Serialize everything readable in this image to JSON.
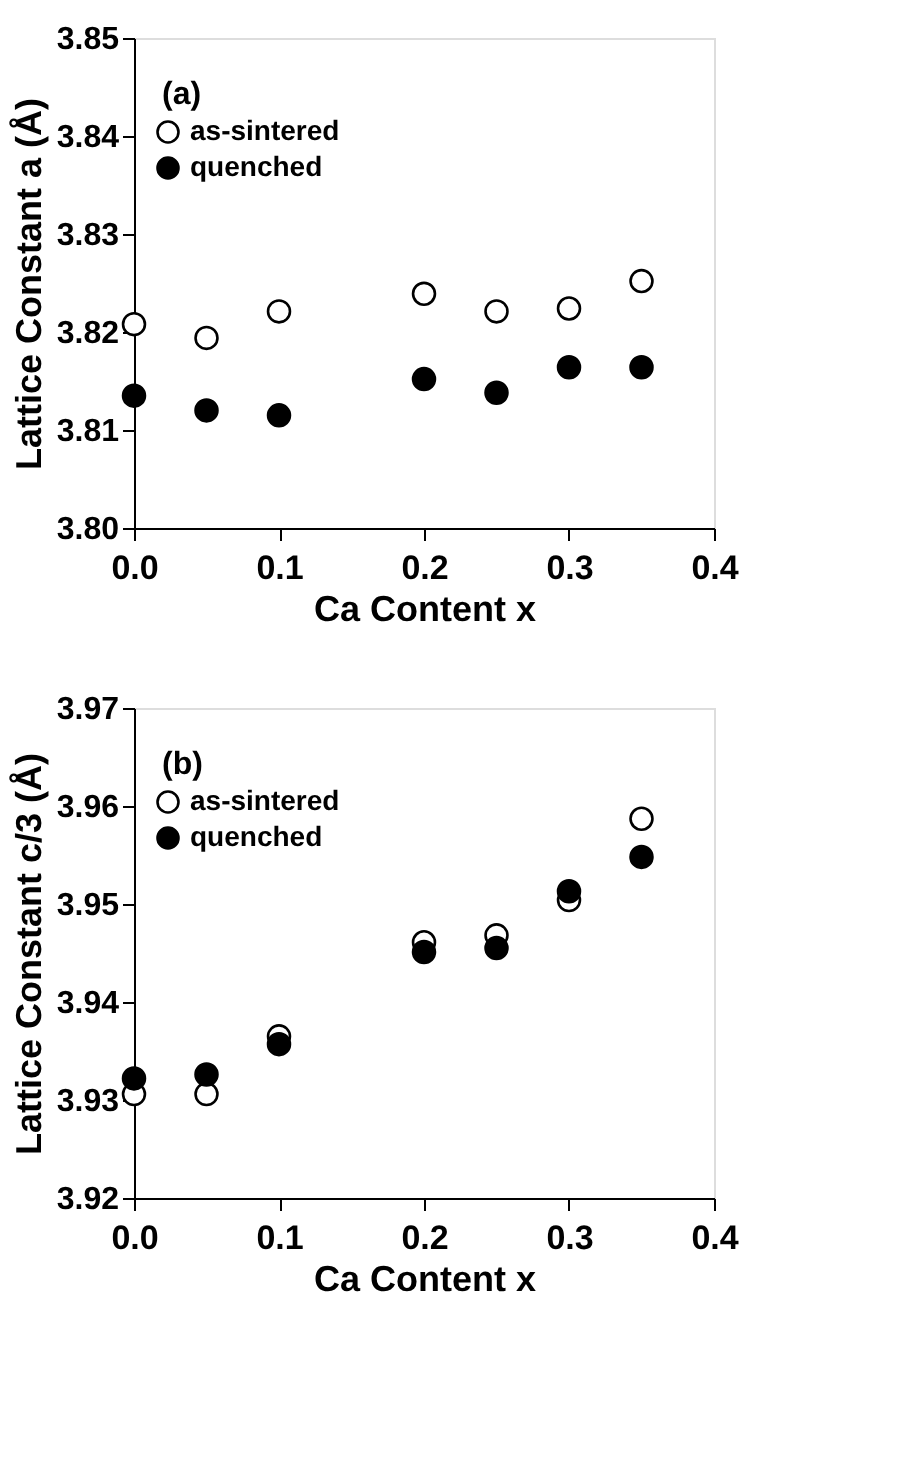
{
  "chart_data": [
    {
      "type": "scatter",
      "xlabel": "Ca Content  x",
      "ylabel": "Lattice Constant  a (Å)",
      "annotations": [
        "(a)"
      ],
      "x": [
        0.0,
        0.05,
        0.1,
        0.2,
        0.25,
        0.3,
        0.35
      ],
      "series": [
        {
          "name": "as-sintered",
          "color": "#ffffff",
          "values": [
            3.8208,
            3.8194,
            3.8221,
            3.8239,
            3.8221,
            3.8224,
            3.8252
          ]
        },
        {
          "name": "quenched",
          "color": "#000000",
          "values": [
            3.8135,
            3.812,
            3.8115,
            3.8152,
            3.8138,
            3.8164,
            3.8164
          ]
        }
      ],
      "xlim": [
        0.0,
        0.4
      ],
      "xticks": [
        {
          "value": 0.0,
          "label": "0.0"
        },
        0.1,
        0.2,
        0.3,
        0.4
      ],
      "ylim": [
        3.8,
        3.85
      ],
      "yticks": [
        {
          "value": 3.8,
          "label": "3.80"
        },
        3.81,
        3.82,
        3.83,
        3.84,
        3.85
      ],
      "legend": "top left",
      "marker": "circle",
      "grid": false
    },
    {
      "type": "scatter",
      "xlabel": "Ca Content  x",
      "ylabel": "Lattice Constant  c/3 (Å)",
      "annotations": [
        "(b)"
      ],
      "x": [
        0.0,
        0.05,
        0.1,
        0.2,
        0.25,
        0.3,
        0.35
      ],
      "series": [
        {
          "name": "as-sintered",
          "color": "#ffffff",
          "values": [
            3.9306,
            3.9306,
            3.9365,
            3.9461,
            3.9468,
            3.9504,
            3.9587
          ]
        },
        {
          "name": "quenched",
          "color": "#000000",
          "values": [
            3.9322,
            3.9326,
            3.9357,
            3.9451,
            3.9455,
            3.9513,
            3.9548
          ]
        }
      ],
      "xlim": [
        0.0,
        0.4
      ],
      "xticks": [
        {
          "value": 0.0,
          "label": "0.0"
        },
        0.1,
        0.2,
        0.3,
        0.4
      ],
      "ylim": [
        3.92,
        3.97
      ],
      "yticks": [
        3.92,
        3.93,
        3.94,
        3.95,
        3.96,
        3.97
      ],
      "legend": "top left",
      "marker": "circle",
      "grid": false
    }
  ]
}
